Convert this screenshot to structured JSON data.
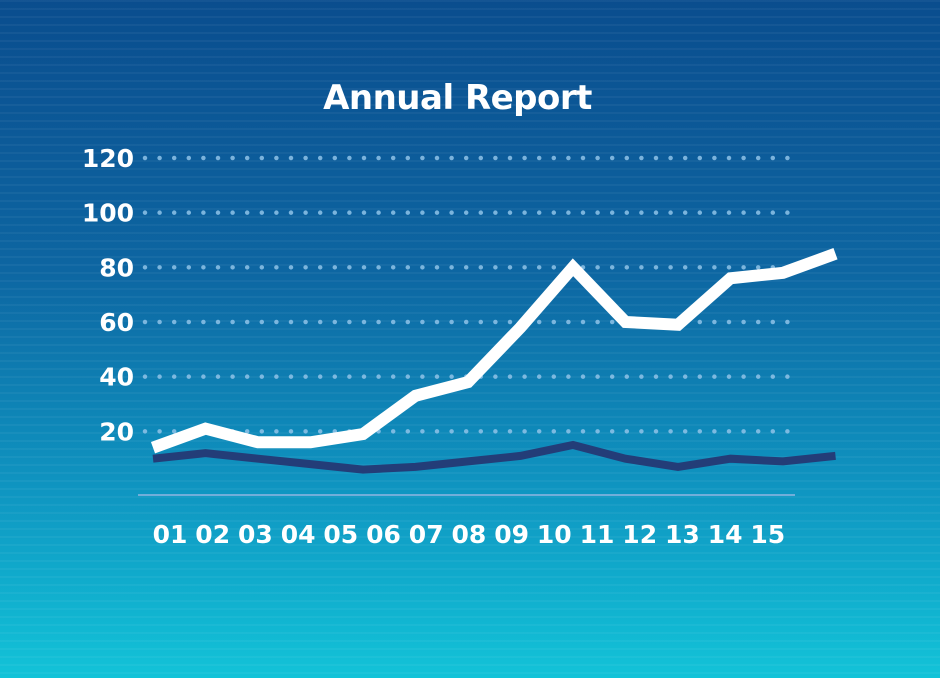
{
  "chart_data": {
    "type": "line",
    "title": "Annual Report",
    "xlabel": "",
    "ylabel": "",
    "categories": [
      "01",
      "02",
      "03",
      "04",
      "05",
      "06",
      "07",
      "08",
      "09",
      "10",
      "11",
      "12",
      "13",
      "14",
      "15"
    ],
    "y_ticks": [
      120,
      100,
      80,
      60,
      40,
      20
    ],
    "ylim": [
      0,
      120
    ],
    "grid": "dotted horizontal",
    "series": [
      {
        "values": [
          14,
          21,
          16,
          16,
          19,
          33,
          38,
          58,
          80,
          60,
          59,
          76,
          78,
          85,
          null
        ]
      },
      {
        "values": [
          10,
          12,
          10,
          8,
          6,
          7,
          9,
          11,
          15,
          10,
          7,
          10,
          9,
          11,
          null
        ]
      }
    ],
    "colors": {
      "series_1": "#ffffff",
      "series_2": "#233d78",
      "grid": "#8fc3e8",
      "axis": "#8ab4e0",
      "text": "#ffffff"
    }
  }
}
